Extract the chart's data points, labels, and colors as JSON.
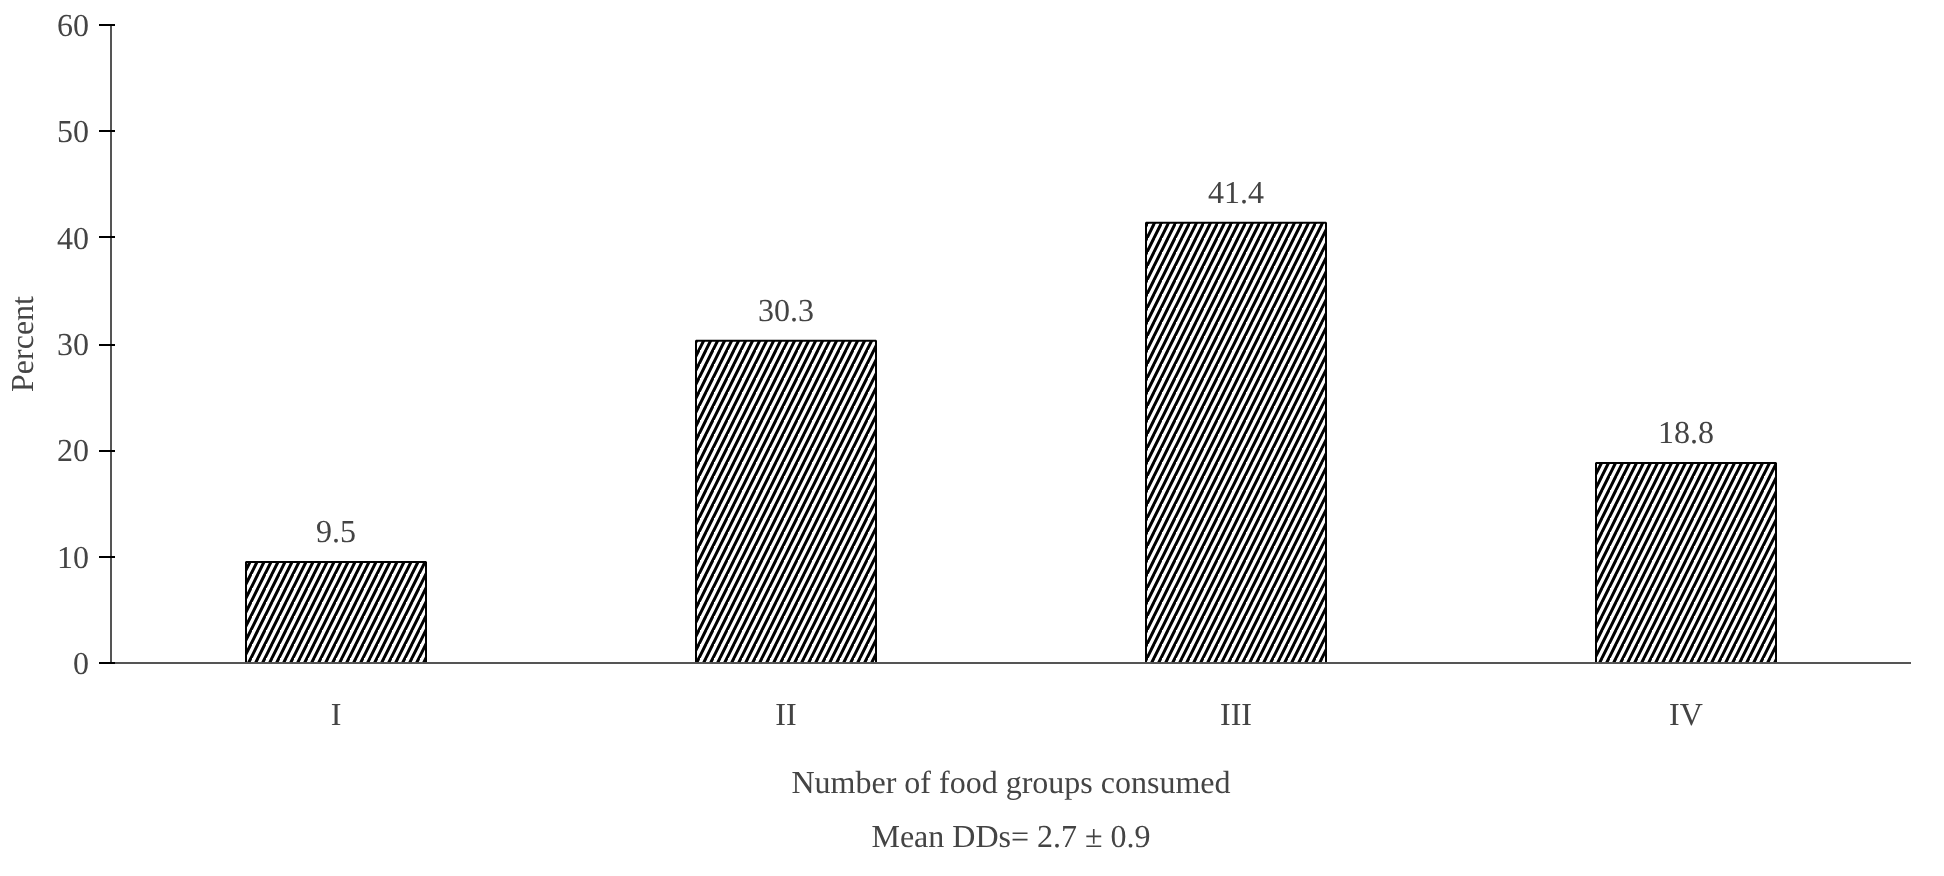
{
  "chart_data": {
    "type": "bar",
    "ylabel": "Percent",
    "xlabel": "Number of food groups consumed",
    "categories": [
      "I",
      "II",
      "III",
      "IV"
    ],
    "values": [
      9.5,
      30.3,
      41.4,
      18.8
    ],
    "color": "#000000",
    "ylim": [
      0,
      60
    ],
    "yticks": [
      0,
      10,
      20,
      30,
      40,
      50,
      60
    ],
    "data_labels": true,
    "grid": false,
    "annotations": [
      "Mean DDs= 2.7 ± 0.9"
    ]
  }
}
